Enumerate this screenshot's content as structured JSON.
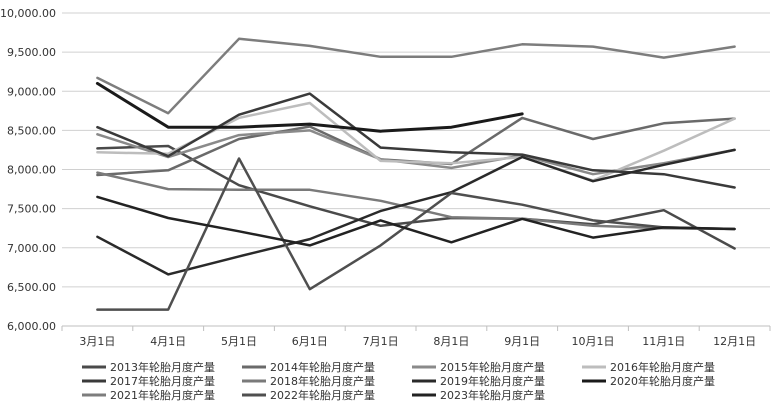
{
  "chart_data": {
    "type": "line",
    "categories": [
      "3月1日",
      "4月1日",
      "5月1日",
      "6月1日",
      "7月1日",
      "8月1日",
      "9月1日",
      "10月1日",
      "11月1日",
      "12月1日"
    ],
    "ylim": [
      6000,
      10000
    ],
    "yticks": [
      6000,
      6500,
      7000,
      7500,
      8000,
      8500,
      9000,
      9500,
      10000
    ],
    "ytick_labels": [
      "6,000.00",
      "6,500.00",
      "7,000.00",
      "7,500.00",
      "8,000.00",
      "8,500.00",
      "9,000.00",
      "9,500.00",
      "10,000.00"
    ],
    "grid": "horizontal",
    "legend_position": "bottom",
    "series": [
      {
        "name": "2013年轮胎月度产量",
        "color": "#4a4a4a",
        "width": 2.5,
        "values": [
          8270,
          8300,
          7800,
          7530,
          7280,
          7380,
          7370,
          7300,
          7480,
          6990
        ]
      },
      {
        "name": "2014年轮胎月度产量",
        "color": "#6a6a6a",
        "width": 2.5,
        "values": [
          7930,
          7990,
          8390,
          8550,
          8130,
          8070,
          8660,
          8390,
          8590,
          8650
        ]
      },
      {
        "name": "2015年轮胎月度产量",
        "color": "#8a8a8a",
        "width": 2.5,
        "values": [
          8450,
          8160,
          8440,
          8500,
          8130,
          8020,
          8180,
          7940,
          8080,
          8250
        ]
      },
      {
        "name": "2016年轮胎月度产量",
        "color": "#bdbdbd",
        "width": 2.5,
        "values": [
          8220,
          8200,
          8660,
          8850,
          8110,
          8080,
          8160,
          7860,
          8240,
          8650
        ]
      },
      {
        "name": "2017年轮胎月度产量",
        "color": "#3a3a3a",
        "width": 2.5,
        "values": [
          8540,
          8170,
          8700,
          8970,
          8280,
          8220,
          8190,
          7990,
          7940,
          7770
        ]
      },
      {
        "name": "2018年轮胎月度产量",
        "color": "#7a7a7a",
        "width": 2.5,
        "values": [
          7960,
          7750,
          7740,
          7740,
          7600,
          7390,
          7370,
          7280,
          7250,
          7240
        ]
      },
      {
        "name": "2019年轮胎月度产量",
        "color": "#2a2a2a",
        "width": 2.5,
        "values": [
          7140,
          6660,
          6890,
          7110,
          7470,
          7710,
          8160,
          7850,
          8060,
          8250
        ]
      },
      {
        "name": "2020年轮胎月度产量",
        "color": "#1a1a1a",
        "width": 3,
        "values": [
          9100,
          8540,
          8540,
          8580,
          8490,
          8540,
          8710,
          null,
          null,
          null
        ]
      },
      {
        "name": "2021年轮胎月度产量",
        "color": "#7d7d7d",
        "width": 2.5,
        "values": [
          9170,
          8720,
          9670,
          9580,
          9440,
          9440,
          9600,
          9570,
          9430,
          9570
        ]
      },
      {
        "name": "2022年轮胎月度产量",
        "color": "#4f4f4f",
        "width": 2.5,
        "values": [
          6210,
          6210,
          8140,
          6470,
          7030,
          7700,
          7550,
          7350,
          7260,
          7240
        ]
      },
      {
        "name": "2023年轮胎月度产量",
        "color": "#222222",
        "width": 2.5,
        "values": [
          7650,
          7380,
          7210,
          7030,
          7350,
          7070,
          7370,
          7130,
          7260,
          7240
        ]
      }
    ]
  }
}
